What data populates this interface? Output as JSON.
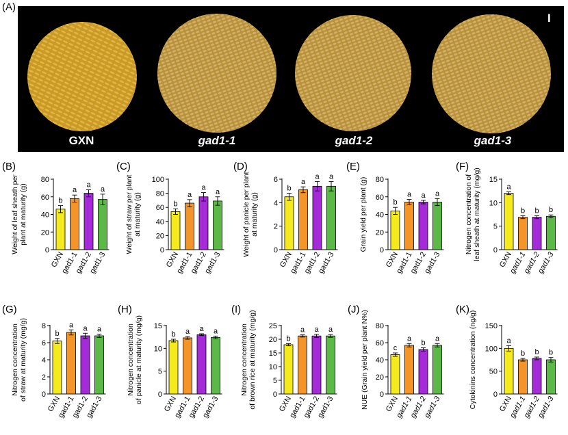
{
  "figure_label": "(A)",
  "photo": {
    "corner_mark": "I",
    "samples": [
      {
        "label": "GXN",
        "italic": false,
        "color": "#c99a2a"
      },
      {
        "label": "gad1-1",
        "italic": true,
        "color": "#b8923a"
      },
      {
        "label": "gad1-2",
        "italic": true,
        "color": "#b8923a"
      },
      {
        "label": "gad1-3",
        "italic": true,
        "color": "#b8923a"
      }
    ]
  },
  "bar_colors": [
    "#f5ea1d",
    "#f4952a",
    "#a52bd9",
    "#5cb948"
  ],
  "chart_data": [
    {
      "id": "B",
      "type": "bar",
      "title": "(B)",
      "ylabel": [
        "Weight of leaf sheath per",
        "plant at maturity (g)"
      ],
      "ylim": [
        0,
        80
      ],
      "ticks": [
        0,
        20,
        40,
        60,
        80
      ],
      "categories": [
        "GXN",
        "gad1-1",
        "gad1-2",
        "gad1-3"
      ],
      "italic_cats": false,
      "values": [
        46,
        58,
        64,
        57
      ],
      "errors": [
        4,
        4,
        4,
        6
      ],
      "letters": [
        "b",
        "a",
        "a",
        "a"
      ]
    },
    {
      "id": "C",
      "type": "bar",
      "title": "(C)",
      "ylabel": [
        "Weight of straw per plant",
        "at maturity (g)"
      ],
      "ylim": [
        0,
        100
      ],
      "ticks": [
        0,
        20,
        40,
        60,
        80,
        100
      ],
      "categories": [
        "GXN",
        "gad1-1",
        "gad1-2",
        "gad1-3"
      ],
      "italic_cats": false,
      "values": [
        54,
        66,
        75,
        69
      ],
      "errors": [
        4,
        5,
        6,
        6
      ],
      "letters": [
        "b",
        "a",
        "a",
        "a"
      ]
    },
    {
      "id": "D",
      "type": "bar",
      "title": "(D)",
      "ylabel": [
        "Weight of panicle per plant",
        "at maturity (g)"
      ],
      "ylim": [
        0,
        6
      ],
      "ticks": [
        0,
        2,
        4,
        6
      ],
      "categories": [
        "GXN",
        "gad1-1",
        "gad1-2",
        "gad1-3"
      ],
      "italic_cats": false,
      "values": [
        4.5,
        5.1,
        5.4,
        5.4
      ],
      "errors": [
        0.3,
        0.25,
        0.4,
        0.4
      ],
      "letters": [
        "b",
        "a",
        "a",
        "a"
      ]
    },
    {
      "id": "E",
      "type": "bar",
      "title": "(E)",
      "ylabel": [
        "Grain yield per plant (g)"
      ],
      "ylim": [
        0,
        80
      ],
      "ticks": [
        0,
        20,
        40,
        60,
        80
      ],
      "categories": [
        "GXN",
        "gad1-1",
        "gad1-2",
        "gad1-3"
      ],
      "italic_cats": false,
      "values": [
        44,
        54,
        54,
        54
      ],
      "errors": [
        4,
        3,
        2,
        4
      ],
      "letters": [
        "b",
        "a",
        "a",
        "a"
      ]
    },
    {
      "id": "F",
      "type": "bar",
      "title": "(F)",
      "ylabel": [
        "Nitrogen concentration of",
        "leaf sheath at maturity (mg/g)"
      ],
      "ylim": [
        0,
        15
      ],
      "ticks": [
        0,
        5,
        10,
        15
      ],
      "categories": [
        "GXN",
        "gad1-1",
        "gad1-2",
        "gad1-3"
      ],
      "italic_cats": true,
      "values": [
        12.0,
        6.9,
        6.9,
        7.1
      ],
      "errors": [
        0.3,
        0.3,
        0.3,
        0.3
      ],
      "letters": [
        "a",
        "b",
        "b",
        "b"
      ]
    },
    {
      "id": "G",
      "type": "bar",
      "title": "(G)",
      "ylabel": [
        "Nitrogen concentration",
        "of straw at maturity (mg/g)"
      ],
      "ylim": [
        0,
        8
      ],
      "ticks": [
        0,
        2,
        4,
        6,
        8
      ],
      "categories": [
        "GXN",
        "gad1-1",
        "gad1-2",
        "gad1-3"
      ],
      "italic_cats": false,
      "values": [
        6.2,
        7.2,
        6.8,
        6.8
      ],
      "errors": [
        0.3,
        0.3,
        0.3,
        0.2
      ],
      "letters": [
        "b",
        "a",
        "a",
        "a"
      ]
    },
    {
      "id": "H",
      "type": "bar",
      "title": "(H)",
      "ylabel": [
        "Nitrogen concentration",
        "of panicle at maturity (mg/g)"
      ],
      "ylim": [
        0,
        15
      ],
      "ticks": [
        0,
        5,
        10,
        15
      ],
      "categories": [
        "GXN",
        "gad1-1",
        "gad1-2",
        "gad1-3"
      ],
      "italic_cats": false,
      "values": [
        11.7,
        12.3,
        13.0,
        12.4
      ],
      "errors": [
        0.3,
        0.3,
        0.2,
        0.3
      ],
      "letters": [
        "b",
        "a",
        "a",
        "a"
      ]
    },
    {
      "id": "I",
      "type": "bar",
      "title": "(I)",
      "ylabel": [
        "Nitrogen concentration",
        "of brown rice at maturity (mg/g)"
      ],
      "ylim": [
        0,
        25
      ],
      "ticks": [
        0,
        5,
        10,
        15,
        20,
        25
      ],
      "categories": [
        "GXN",
        "gad1-1",
        "gad1-2",
        "gad1-3"
      ],
      "italic_cats": false,
      "values": [
        18.0,
        21.2,
        21.2,
        21.2
      ],
      "errors": [
        0.4,
        0.4,
        0.6,
        0.5
      ],
      "letters": [
        "b",
        "a",
        "a",
        "a"
      ]
    },
    {
      "id": "J",
      "type": "bar",
      "title": "(J)",
      "ylabel": [
        "NUE (Grain yield per plant N%)"
      ],
      "ylim": [
        0,
        80
      ],
      "ticks": [
        0,
        20,
        40,
        60,
        80
      ],
      "categories": [
        "GXN",
        "gad1-1",
        "gad1-2",
        "gad1-3"
      ],
      "italic_cats": true,
      "values": [
        46,
        57,
        52,
        57
      ],
      "errors": [
        2,
        2,
        2,
        2
      ],
      "letters": [
        "c",
        "a",
        "b",
        "a"
      ]
    },
    {
      "id": "K",
      "type": "bar",
      "title": "(K)",
      "ylabel": [
        "Cytokinins concentration (ng/g)"
      ],
      "ylim": [
        0,
        150
      ],
      "ticks": [
        0,
        50,
        100,
        150
      ],
      "categories": [
        "GXN",
        "gad1-1",
        "gad1-2",
        "gad1-3"
      ],
      "italic_cats": true,
      "values": [
        100,
        75,
        78,
        75
      ],
      "errors": [
        6,
        3,
        3,
        5
      ],
      "letters": [
        "a",
        "b",
        "b",
        "b"
      ]
    }
  ]
}
